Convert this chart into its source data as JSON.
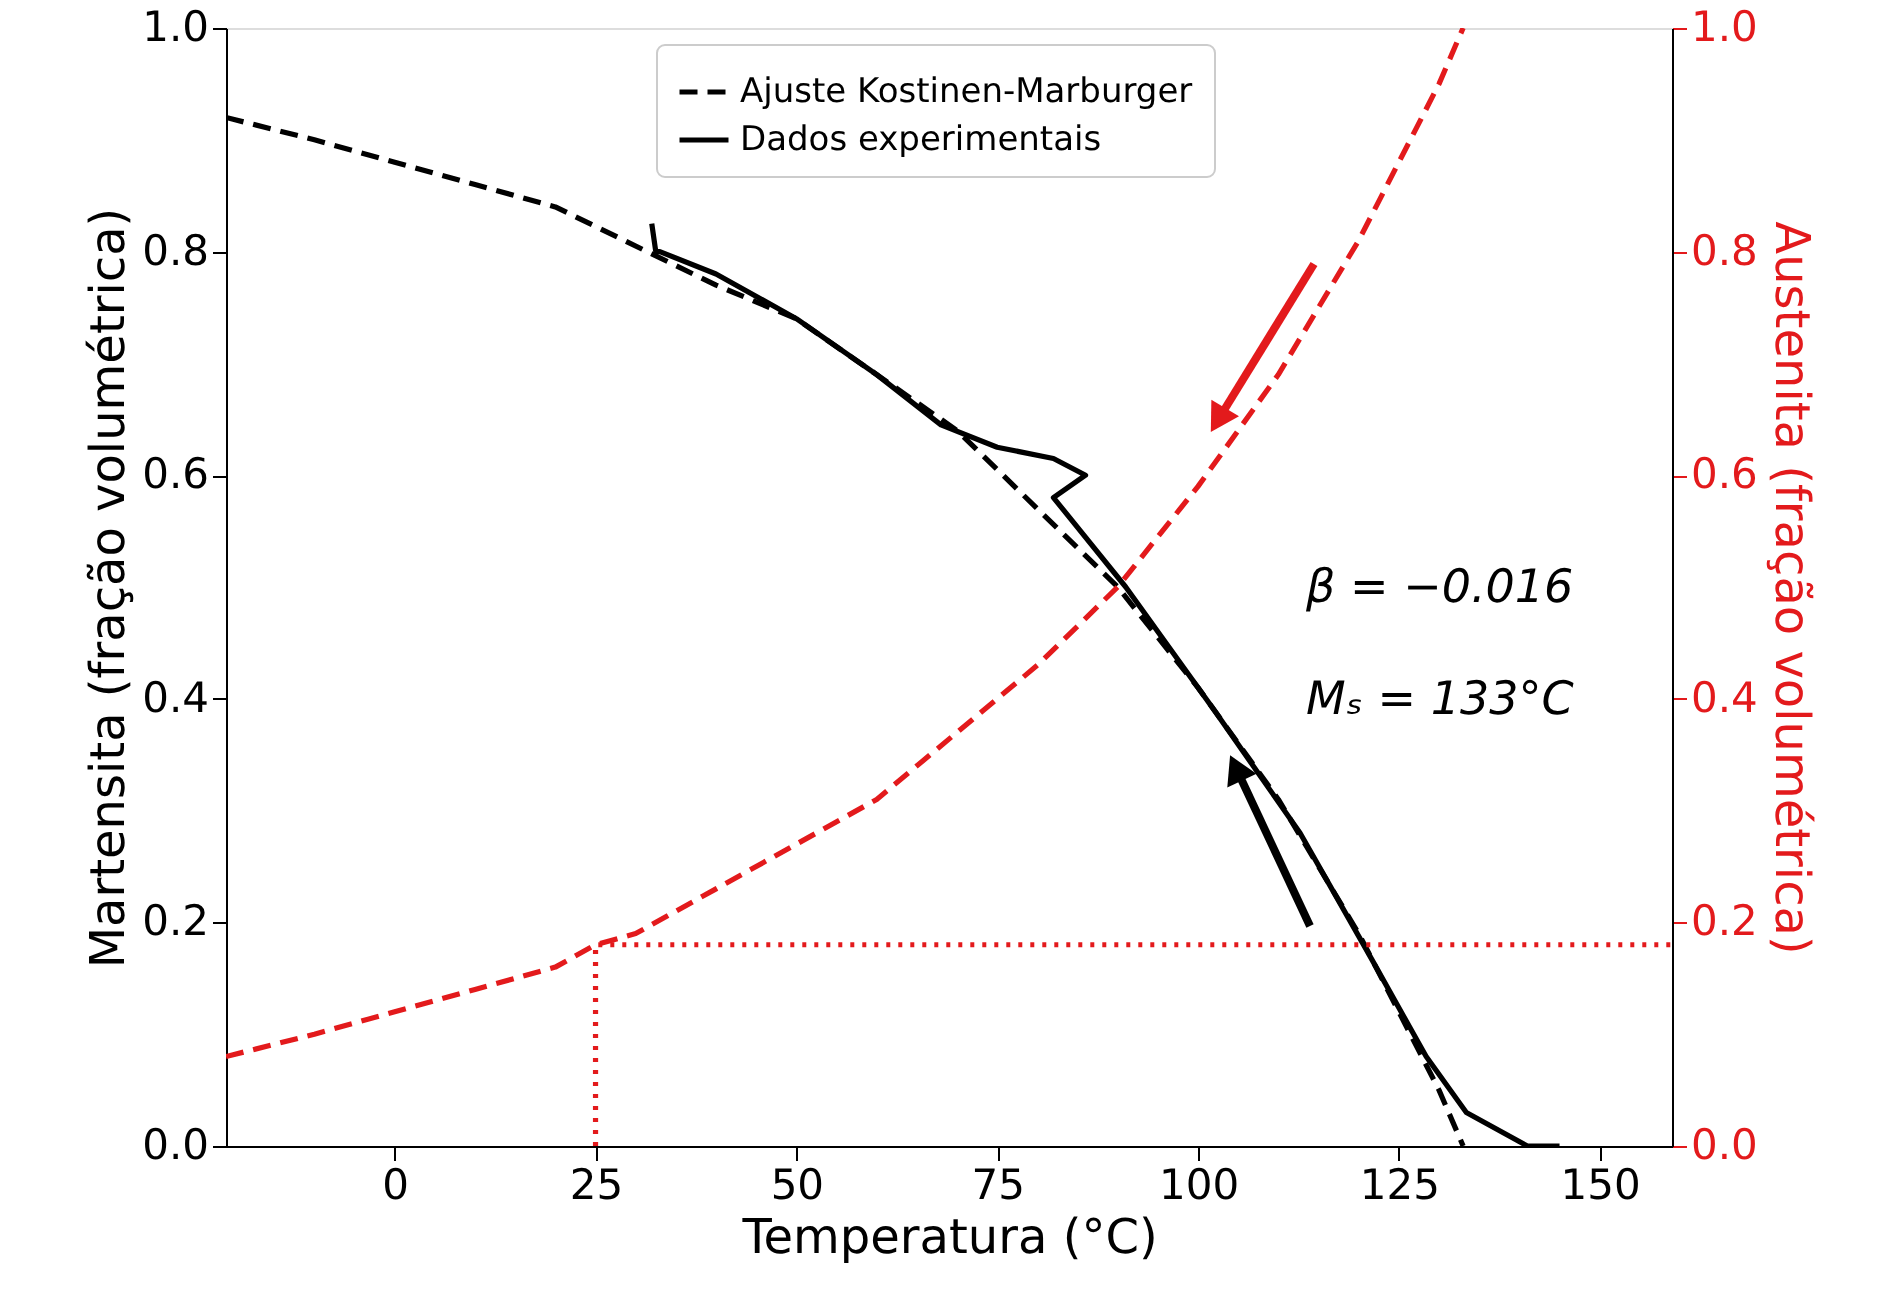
{
  "chart_data": {
    "type": "line",
    "xlabel": "Temperatura (°C)",
    "ylabel": "Martensita (fração volumétrica)",
    "y2label": "Austenita (fração volumétrica)",
    "xlim": [
      -21,
      159
    ],
    "ylim": [
      0,
      1
    ],
    "y2lim": [
      0,
      1
    ],
    "xticks": [
      0,
      25,
      50,
      75,
      100,
      125,
      150
    ],
    "yticks": [
      {
        "value": 0,
        "label": "0.0"
      },
      {
        "value": 0.2,
        "label": "0.2"
      },
      {
        "value": 0.4,
        "label": "0.4"
      },
      {
        "value": 0.6,
        "label": "0.6"
      },
      {
        "value": 0.8,
        "label": "0.8"
      },
      {
        "value": 1,
        "label": "1.0"
      }
    ],
    "y2ticks": [
      {
        "value": 0,
        "label": "0.0"
      },
      {
        "value": 0.2,
        "label": "0.2"
      },
      {
        "value": 0.4,
        "label": "0.4"
      },
      {
        "value": 0.6,
        "label": "0.6"
      },
      {
        "value": 0.8,
        "label": "0.8"
      },
      {
        "value": 1,
        "label": "1.0"
      }
    ],
    "grid": false,
    "legend": "top",
    "marker": "none",
    "annotations": [
      "β = −0.016",
      "Mₛ = 133°C"
    ],
    "series": [
      {
        "name": "Ajuste Kostinen-Marburger",
        "color": "#000000",
        "line_style": "dashed",
        "x": [
          -21,
          -10,
          0,
          10,
          20,
          40,
          50,
          60,
          70,
          80,
          90,
          100,
          110,
          120,
          125,
          130,
          133
        ],
        "values": [
          0.92,
          0.9,
          0.88,
          0.86,
          0.84,
          0.77,
          0.74,
          0.69,
          0.64,
          0.57,
          0.5,
          0.41,
          0.31,
          0.19,
          0.12,
          0.05,
          0
        ]
      },
      {
        "name": "Dados experimentais",
        "color": "#000000",
        "line_style": "solid",
        "x": [
          32,
          32.5,
          33,
          40,
          50,
          60,
          68,
          75,
          82,
          86,
          82,
          91,
          102,
          112.7,
          121,
          128.4,
          133.4,
          141,
          145
        ],
        "values": [
          0.825,
          0.8,
          0.8,
          0.78,
          0.74,
          0.69,
          0.645,
          0.625,
          0.615,
          0.6,
          0.58,
          0.5,
          0.39,
          0.28,
          0.175,
          0.08,
          0.03,
          0.0,
          0.0
        ]
      },
      {
        "color": "#e31a1c",
        "line_style": "dashed",
        "axis": "y2",
        "x": [
          -21,
          -10,
          0,
          10,
          20,
          25,
          30,
          40,
          50,
          60,
          70,
          80,
          90,
          100,
          110,
          120,
          125,
          130,
          133
        ],
        "values": [
          0.08,
          0.1,
          0.12,
          0.14,
          0.16,
          0.18,
          0.19,
          0.23,
          0.27,
          0.31,
          0.37,
          0.43,
          0.5,
          0.59,
          0.69,
          0.81,
          0.88,
          0.95,
          1.0
        ]
      },
      {
        "color": "#e31a1c",
        "line_style": "dotted",
        "axis": "y2",
        "x": [
          25,
          25,
          159
        ],
        "values": [
          0,
          0.18,
          0.18
        ]
      }
    ]
  }
}
